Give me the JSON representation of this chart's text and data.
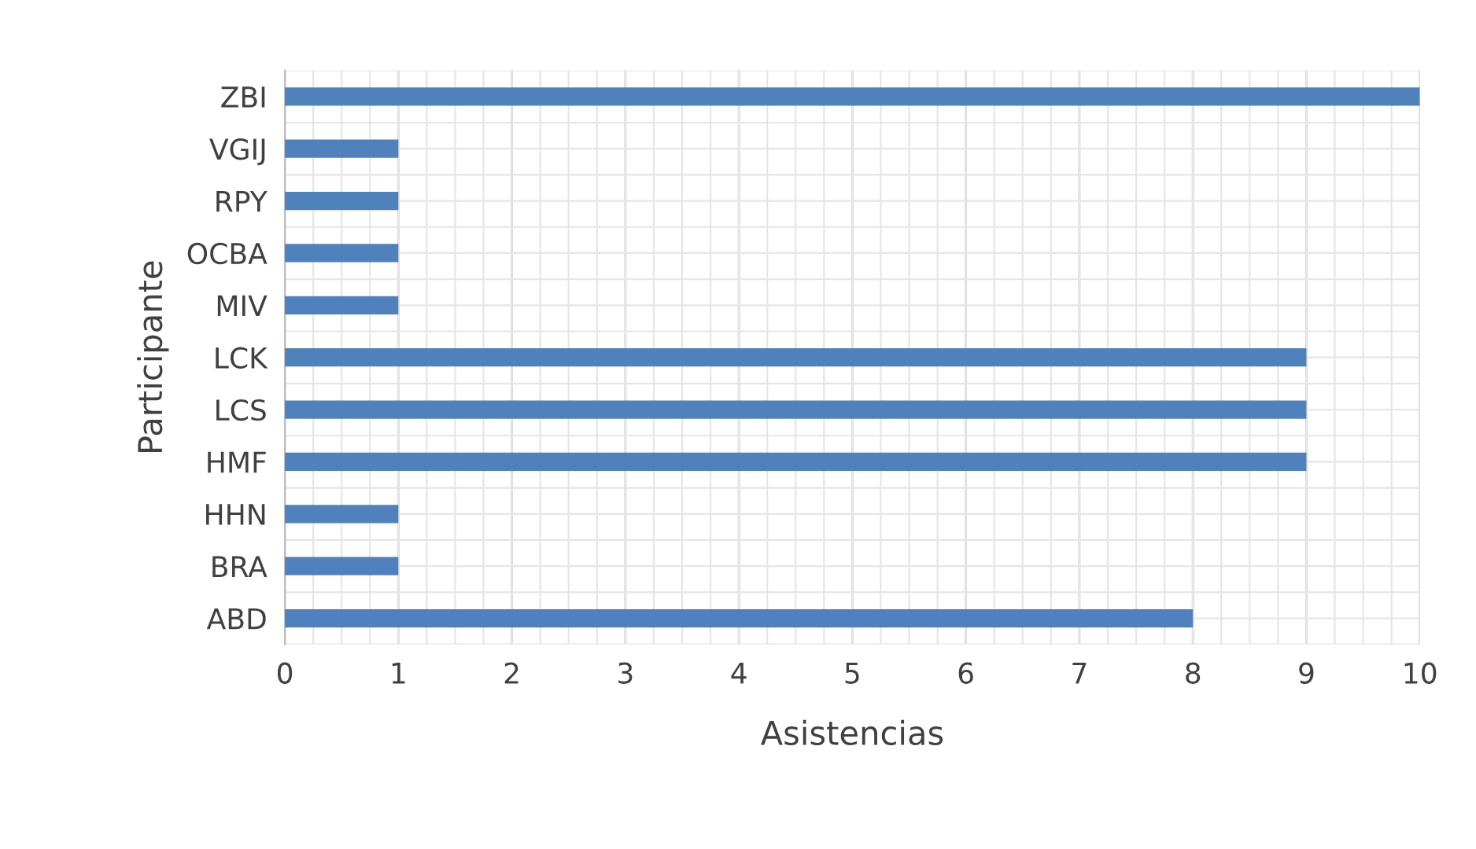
{
  "chart_data": {
    "type": "bar",
    "orientation": "horizontal",
    "xlabel": "Asistencias",
    "ylabel": "Participante",
    "categories": [
      "ZBI",
      "VGIJ",
      "RPY",
      "OCBA",
      "MIV",
      "LCK",
      "LCS",
      "HMF",
      "HHN",
      "BRA",
      "ABD"
    ],
    "values": [
      10,
      1,
      1,
      1,
      1,
      9,
      9,
      9,
      1,
      1,
      8
    ],
    "color": "#4f81bd",
    "xlim": [
      0,
      10
    ],
    "xticks": [
      0,
      1,
      2,
      3,
      4,
      5,
      6,
      7,
      8,
      9,
      10
    ],
    "grid": true
  }
}
